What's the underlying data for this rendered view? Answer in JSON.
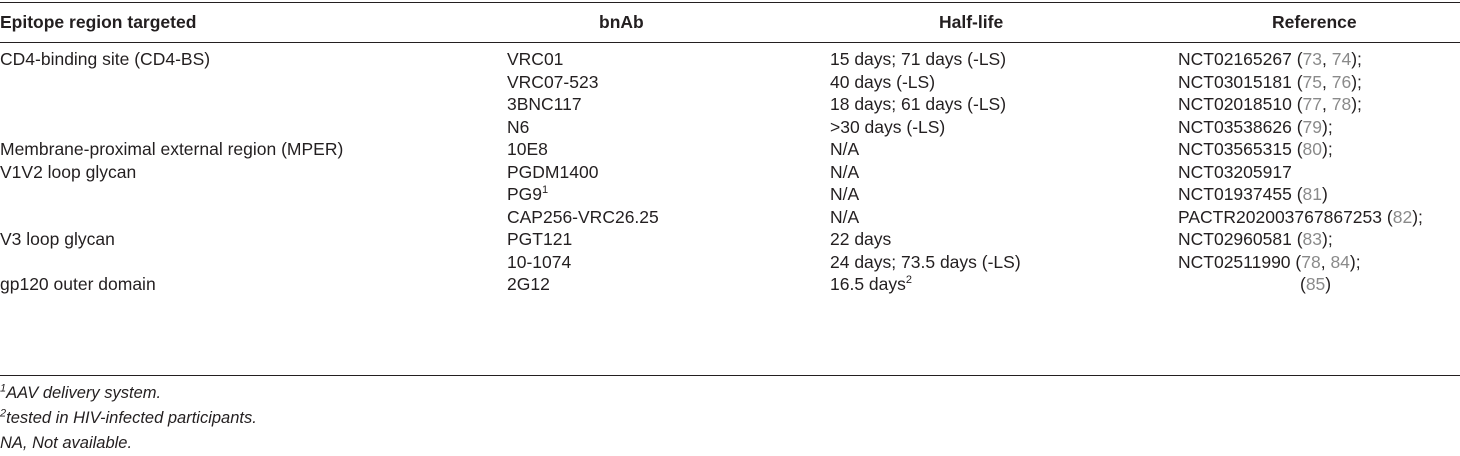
{
  "table": {
    "headers": {
      "epitope": "Epitope region targeted",
      "bnab": "bnAb",
      "halflife": "Half-life",
      "reference": "Reference"
    },
    "rows": [
      {
        "epitope": "CD4-binding site (CD4-BS)",
        "bnab": "VRC01",
        "bnab_sup": "",
        "halflife": "15 days; 71 days (-LS)",
        "halflife_sup": "",
        "ref_id": "NCT02165267",
        "ref_open": " (",
        "ref_nums": [
          "73",
          "74"
        ],
        "ref_close": ");"
      },
      {
        "epitope": "",
        "bnab": "VRC07-523",
        "bnab_sup": "",
        "halflife": "40 days (-LS)",
        "halflife_sup": "",
        "ref_id": "NCT03015181",
        "ref_open": " (",
        "ref_nums": [
          "75",
          "76"
        ],
        "ref_close": ");"
      },
      {
        "epitope": "",
        "bnab": "3BNC117",
        "bnab_sup": "",
        "halflife": "18 days; 61 days (-LS)",
        "halflife_sup": "",
        "ref_id": "NCT02018510",
        "ref_open": " (",
        "ref_nums": [
          "77",
          "78"
        ],
        "ref_close": ");"
      },
      {
        "epitope": "",
        "bnab": "N6",
        "bnab_sup": "",
        "halflife": ">30 days (-LS)",
        "halflife_sup": "",
        "ref_id": "NCT03538626",
        "ref_open": " (",
        "ref_nums": [
          "79"
        ],
        "ref_close": ");"
      },
      {
        "epitope": "Membrane-proximal external region (MPER)",
        "bnab": "10E8",
        "bnab_sup": "",
        "halflife": "N/A",
        "halflife_sup": "",
        "ref_id": "NCT03565315",
        "ref_open": " (",
        "ref_nums": [
          "80"
        ],
        "ref_close": ");"
      },
      {
        "epitope": "V1V2 loop glycan",
        "bnab": "PGDM1400",
        "bnab_sup": "",
        "halflife": "N/A",
        "halflife_sup": "",
        "ref_id": "NCT03205917",
        "ref_open": "",
        "ref_nums": [],
        "ref_close": ""
      },
      {
        "epitope": "",
        "bnab": "PG9",
        "bnab_sup": "1",
        "halflife": "N/A",
        "halflife_sup": "",
        "ref_id": "NCT01937455",
        "ref_open": " (",
        "ref_nums": [
          "81"
        ],
        "ref_close": ")"
      },
      {
        "epitope": "",
        "bnab": "CAP256-VRC26.25",
        "bnab_sup": "",
        "halflife": "N/A",
        "halflife_sup": "",
        "ref_id": "PACTR202003767867253",
        "ref_open": " (",
        "ref_nums": [
          "82"
        ],
        "ref_close": ");"
      },
      {
        "epitope": "V3 loop glycan",
        "bnab": "PGT121",
        "bnab_sup": "",
        "halflife": "22 days",
        "halflife_sup": "",
        "ref_id": "NCT02960581",
        "ref_open": " (",
        "ref_nums": [
          "83"
        ],
        "ref_close": ");"
      },
      {
        "epitope": "",
        "bnab": "10-1074",
        "bnab_sup": "",
        "halflife": "24 days; 73.5 days (-LS)",
        "halflife_sup": "",
        "ref_id": "NCT02511990",
        "ref_open": " (",
        "ref_nums": [
          "78",
          "84"
        ],
        "ref_close": ");"
      },
      {
        "epitope": "gp120 outer domain",
        "bnab": "2G12",
        "bnab_sup": "",
        "halflife": "16.5 days",
        "halflife_sup": "2",
        "ref_id": "",
        "ref_open": "(",
        "ref_nums": [
          "85"
        ],
        "ref_close": ")"
      }
    ]
  },
  "footnotes": [
    {
      "mark": "1",
      "text": "AAV delivery system."
    },
    {
      "mark": "2",
      "text": "tested in HIV-infected participants."
    },
    {
      "mark": "",
      "text": "NA, Not available."
    }
  ],
  "colors": {
    "text": "#231f20",
    "reference_link": "#8a8a8a"
  }
}
